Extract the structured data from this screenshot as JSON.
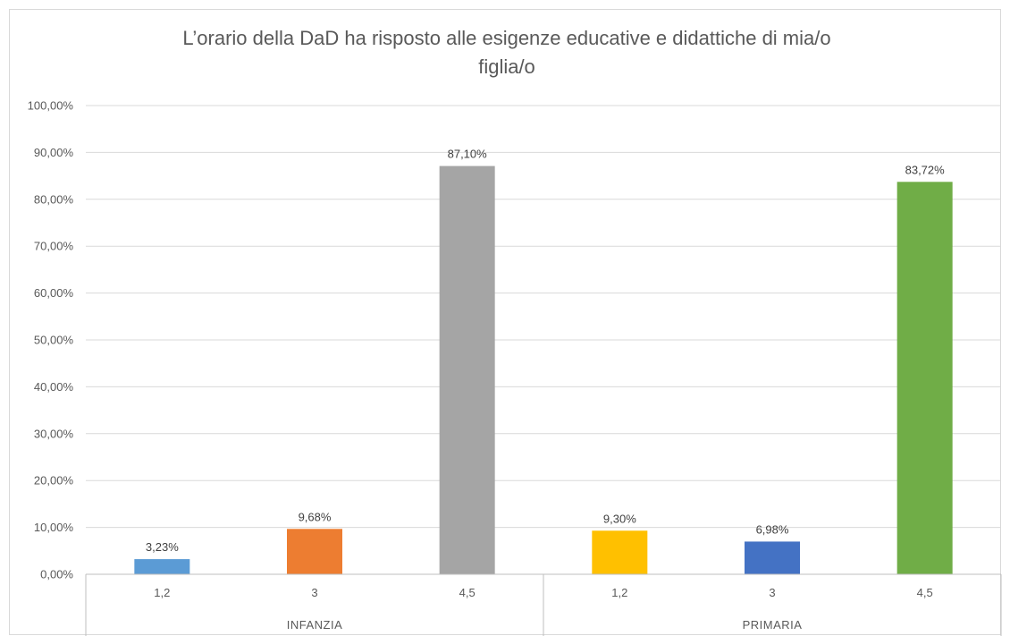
{
  "chart_data": {
    "type": "bar",
    "title_lines": [
      "L’orario della DaD ha risposto alle esigenze educative e didattiche di mia/o",
      "figlia/o"
    ],
    "xlabel": "",
    "ylabel": "",
    "ylim": [
      0,
      100
    ],
    "y_ticks": [
      "0,00%",
      "10,00%",
      "20,00%",
      "30,00%",
      "40,00%",
      "50,00%",
      "60,00%",
      "70,00%",
      "80,00%",
      "90,00%",
      "100,00%"
    ],
    "grid": true,
    "legend": "none",
    "groups": [
      {
        "name": "INFANZIA",
        "bars": [
          {
            "category": "1,2",
            "value": 3.23,
            "label": "3,23%",
            "color": "#5b9bd5"
          },
          {
            "category": "3",
            "value": 9.68,
            "label": "9,68%",
            "color": "#ed7d31"
          },
          {
            "category": "4,5",
            "value": 87.1,
            "label": "87,10%",
            "color": "#a5a5a5"
          }
        ]
      },
      {
        "name": "PRIMARIA",
        "bars": [
          {
            "category": "1,2",
            "value": 9.3,
            "label": "9,30%",
            "color": "#ffc000"
          },
          {
            "category": "3",
            "value": 6.98,
            "label": "6,98%",
            "color": "#4472c4"
          },
          {
            "category": "4,5",
            "value": 83.72,
            "label": "83,72%",
            "color": "#70ad47"
          }
        ]
      }
    ]
  }
}
